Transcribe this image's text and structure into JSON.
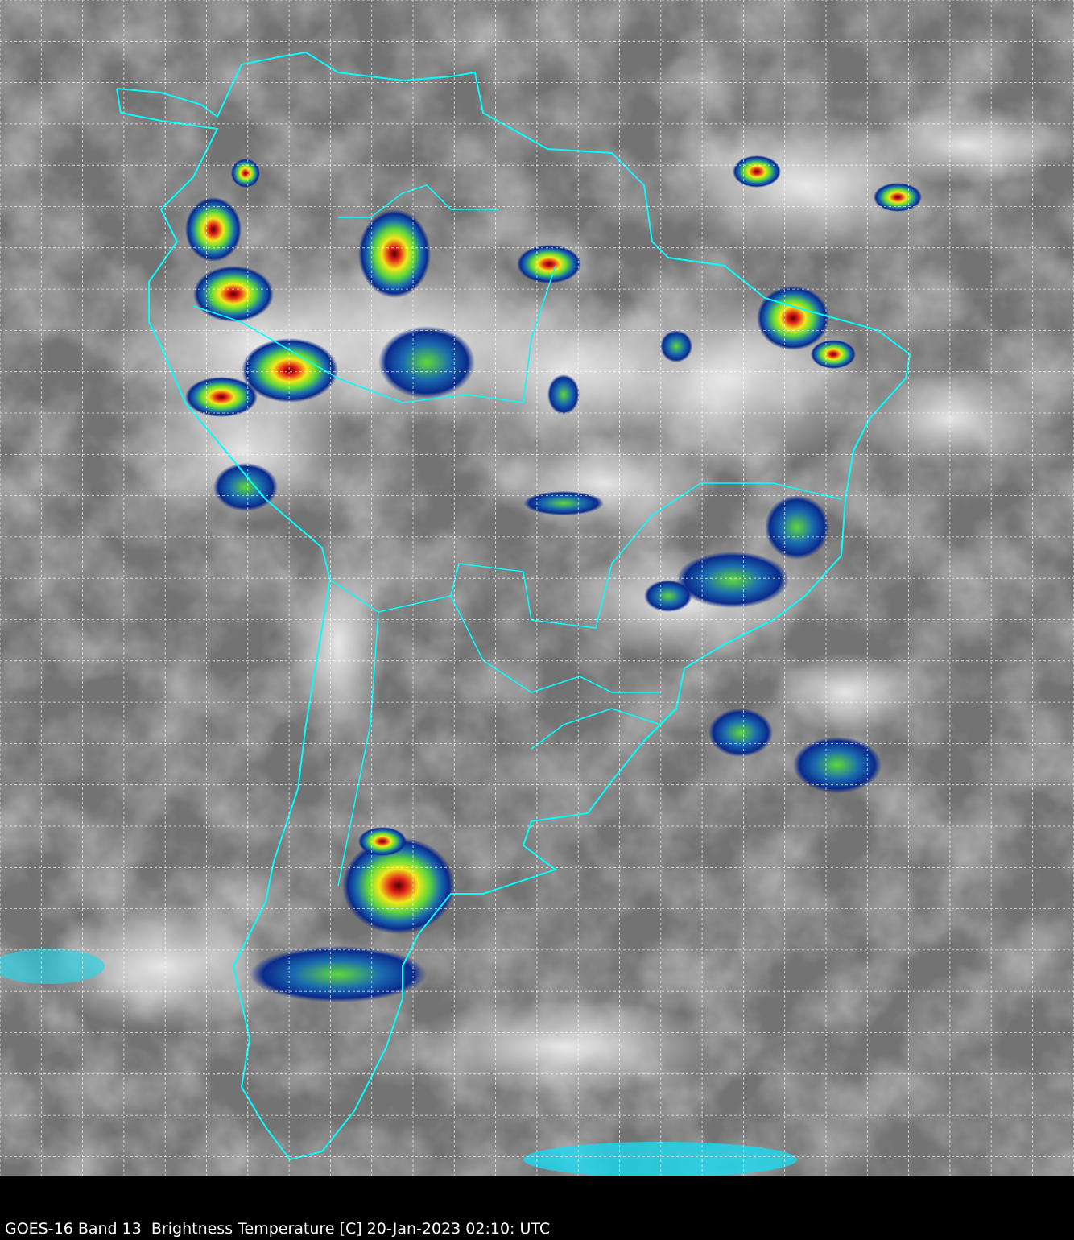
{
  "caption": "GOES-16 Band 13  Brightness Temperature [C] 20-Jan-2023 02:10: UTC",
  "colors": {
    "background_band": "#000000",
    "boundaries": "#00ffff",
    "grid": "#ffffff",
    "cloud_gray": "#7a7a7a",
    "cold_top_cyan": "#1ad8f0",
    "cold_top_blue": "#0a2a8a",
    "cold_top_green": "#5fd83a",
    "cold_top_yellow": "#f0e81a",
    "cold_top_red": "#e0201a",
    "cold_top_darkred": "#500000"
  },
  "map": {
    "region": "South America",
    "projection_grid": "dashed lat/lon graticule",
    "coloring": "grayscale IR with enhanced color for cold cloud tops"
  }
}
